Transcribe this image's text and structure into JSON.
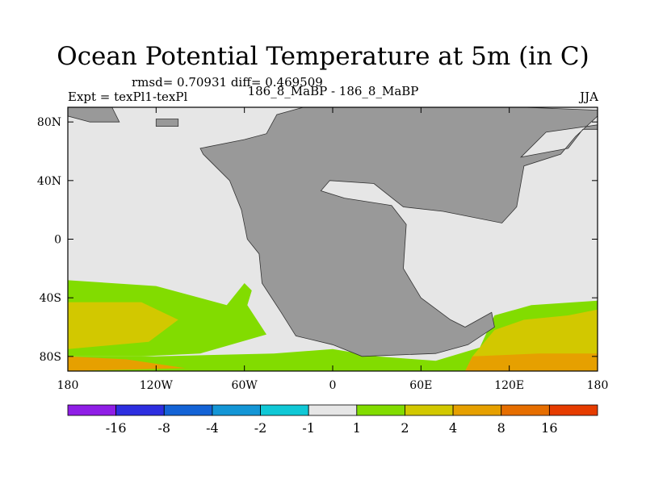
{
  "chart_data": {
    "type": "heatmap",
    "title": "Ocean Potential Temperature at 5m (in C)",
    "stats": "rmsd= 0.70931 diff= 0.469509",
    "left_label": "Expt = texPl1-texPl",
    "center_label": "186_8_MaBP - 186_8_MaBP",
    "right_label": "JJA",
    "x_axis": {
      "range": [
        -180,
        180
      ],
      "ticks": [
        {
          "value": -180,
          "label": "180"
        },
        {
          "value": -120,
          "label": "120W"
        },
        {
          "value": -60,
          "label": "60W"
        },
        {
          "value": 0,
          "label": "0"
        },
        {
          "value": 60,
          "label": "60E"
        },
        {
          "value": 120,
          "label": "120E"
        },
        {
          "value": 180,
          "label": "180"
        }
      ]
    },
    "y_axis": {
      "range": [
        -90,
        90
      ],
      "ticks": [
        {
          "value": 80,
          "label": "80N"
        },
        {
          "value": 40,
          "label": "40N"
        },
        {
          "value": 0,
          "label": "0"
        },
        {
          "value": -40,
          "label": "40S"
        },
        {
          "value": -80,
          "label": "80S"
        }
      ]
    },
    "colorbar": {
      "colors": [
        "#8f1ee6",
        "#2d2ee0",
        "#1463d6",
        "#1496d6",
        "#10c8d6",
        "#e6e6e6",
        "#82dc00",
        "#d2c800",
        "#e6a000",
        "#e66e00",
        "#e63c00"
      ],
      "labels": [
        "-16",
        "-8",
        "-4",
        "-2",
        "-1",
        "1",
        "2",
        "4",
        "8",
        "16"
      ]
    },
    "ocean_background": "0 (-1 to 1 bin)",
    "land_color": "#999999",
    "regions": [
      {
        "name": "land-pangaea",
        "category": "land",
        "points": [
          [
            -90,
            62
          ],
          [
            -60,
            68
          ],
          [
            -45,
            72
          ],
          [
            -38,
            85
          ],
          [
            -20,
            90
          ],
          [
            60,
            90
          ],
          [
            130,
            90
          ],
          [
            180,
            88
          ],
          [
            180,
            78
          ],
          [
            145,
            73
          ],
          [
            128,
            56
          ],
          [
            160,
            62
          ],
          [
            170,
            75
          ],
          [
            180,
            75
          ],
          [
            180,
            84
          ],
          [
            165,
            70
          ],
          [
            155,
            58
          ],
          [
            130,
            50
          ],
          [
            125,
            22
          ],
          [
            115,
            11
          ],
          [
            75,
            19
          ],
          [
            48,
            22
          ],
          [
            28,
            38
          ],
          [
            -2,
            40
          ],
          [
            -8,
            33
          ],
          [
            8,
            28
          ],
          [
            40,
            23
          ],
          [
            50,
            10
          ],
          [
            48,
            -20
          ],
          [
            60,
            -40
          ],
          [
            80,
            -55
          ],
          [
            90,
            -60
          ],
          [
            108,
            -50
          ],
          [
            110,
            -60
          ],
          [
            92,
            -72
          ],
          [
            70,
            -78
          ],
          [
            20,
            -80
          ],
          [
            0,
            -72
          ],
          [
            -25,
            -66
          ],
          [
            -35,
            -50
          ],
          [
            -48,
            -30
          ],
          [
            -50,
            -10
          ],
          [
            -58,
            0
          ],
          [
            -62,
            20
          ],
          [
            -70,
            40
          ],
          [
            -80,
            50
          ],
          [
            -88,
            58
          ]
        ]
      },
      {
        "name": "land-west-island",
        "category": "land",
        "points": [
          [
            -180,
            90
          ],
          [
            -150,
            90
          ],
          [
            -145,
            80
          ],
          [
            -165,
            80
          ],
          [
            -180,
            84
          ]
        ]
      },
      {
        "name": "land-arctic-islet",
        "category": "land",
        "points": [
          [
            -120,
            82
          ],
          [
            -105,
            82
          ],
          [
            -105,
            77
          ],
          [
            -120,
            77
          ]
        ]
      },
      {
        "name": "anomaly-sw-south-pacific",
        "category": "1 to 2",
        "points": [
          [
            -180,
            -28
          ],
          [
            -120,
            -32
          ],
          [
            -72,
            -45
          ],
          [
            -60,
            -30
          ],
          [
            -55,
            -35
          ],
          [
            -58,
            -45
          ],
          [
            -45,
            -65
          ],
          [
            -90,
            -78
          ],
          [
            -130,
            -80
          ],
          [
            -180,
            -80
          ]
        ]
      },
      {
        "name": "anomaly-southern-band",
        "category": "1 to 2",
        "points": [
          [
            -180,
            -80
          ],
          [
            -120,
            -80
          ],
          [
            -40,
            -78
          ],
          [
            0,
            -75
          ],
          [
            30,
            -80
          ],
          [
            70,
            -83
          ],
          [
            100,
            -74
          ],
          [
            110,
            -52
          ],
          [
            135,
            -45
          ],
          [
            180,
            -42
          ],
          [
            180,
            -90
          ],
          [
            -180,
            -90
          ]
        ]
      },
      {
        "name": "anomaly-southwest-warm",
        "category": "2 to 4",
        "points": [
          [
            -180,
            -43
          ],
          [
            -130,
            -43
          ],
          [
            -105,
            -55
          ],
          [
            -125,
            -70
          ],
          [
            -180,
            -75
          ]
        ]
      },
      {
        "name": "anomaly-southeast-warm",
        "category": "2 to 4",
        "points": [
          [
            110,
            -62
          ],
          [
            130,
            -55
          ],
          [
            160,
            -52
          ],
          [
            180,
            -48
          ],
          [
            180,
            -90
          ],
          [
            90,
            -90
          ],
          [
            95,
            -80
          ]
        ]
      },
      {
        "name": "anomaly-southeast-hot",
        "category": "4 to 8",
        "points": [
          [
            95,
            -80
          ],
          [
            140,
            -78
          ],
          [
            180,
            -78
          ],
          [
            180,
            -90
          ],
          [
            90,
            -90
          ]
        ]
      },
      {
        "name": "anomaly-southwest-hot",
        "category": "4 to 8",
        "points": [
          [
            -180,
            -80
          ],
          [
            -140,
            -82
          ],
          [
            -100,
            -88
          ],
          [
            -180,
            -90
          ]
        ]
      }
    ]
  }
}
